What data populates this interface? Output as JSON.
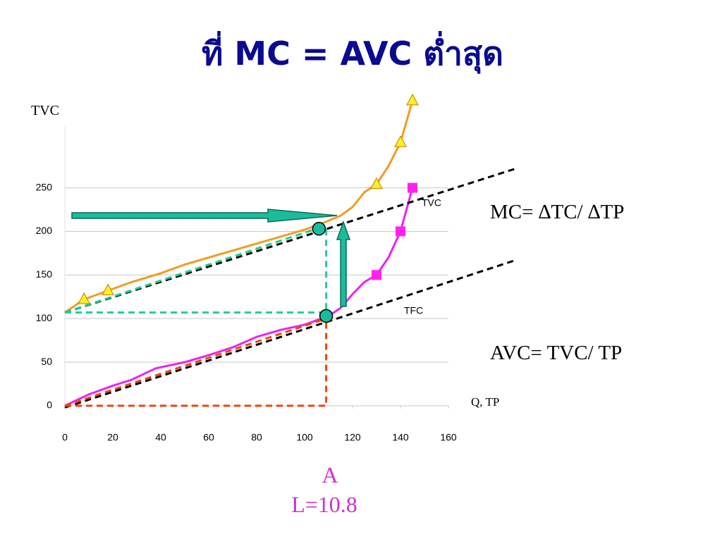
{
  "chart_data": {
    "type": "line",
    "title": "ที่ MC = AVC ต่ำสุด",
    "y_label": "TVC",
    "x_label": "Q, TP",
    "annotations": [
      "TVC",
      "TFC",
      "MC= ∆TC/ ∆TP",
      "AVC= TVC/ TP",
      "A",
      "L=10.8"
    ],
    "xlim": [
      0,
      160
    ],
    "xticks": [
      0,
      20,
      40,
      60,
      80,
      100,
      120,
      140,
      160
    ],
    "ylim": [
      0,
      320
    ],
    "yticks": [
      0,
      50,
      100,
      150,
      200,
      250
    ],
    "grid": true,
    "series": [
      {
        "color": "#f39c1f",
        "x": [
          0,
          8,
          18,
          28,
          40,
          50,
          60,
          70,
          80,
          90,
          100,
          108,
          115,
          120,
          125,
          130,
          135,
          140,
          145
        ],
        "values": [
          107,
          122,
          132,
          142,
          152,
          162,
          170,
          178,
          186,
          194,
          202,
          210,
          218,
          228,
          245,
          254,
          275,
          302,
          350
        ]
      },
      {
        "color": "#ee22ee",
        "x": [
          0,
          10,
          20,
          28,
          38,
          50,
          60,
          70,
          80,
          90,
          100,
          107,
          110,
          115,
          120,
          125,
          130,
          135,
          140,
          145
        ],
        "values": [
          0,
          13,
          23,
          30,
          43,
          50,
          58,
          67,
          79,
          87,
          93,
          100,
          103,
          112,
          128,
          142,
          150,
          170,
          200,
          250
        ]
      },
      {
        "color": "#000000",
        "dash": true,
        "x": [
          0,
          188
        ],
        "values": [
          107,
          272
        ]
      },
      {
        "color": "#000000",
        "dash": true,
        "x": [
          0,
          188
        ],
        "values": [
          -2,
          167
        ]
      },
      {
        "color": "#22cc99",
        "dash": true,
        "x": [
          0,
          106
        ],
        "values": [
          107,
          204
        ]
      },
      {
        "color": "#22cc99",
        "dash": true,
        "x": [
          0,
          109,
          109
        ],
        "values": [
          107,
          107,
          204
        ]
      },
      {
        "color": "#ee4411",
        "dash": true,
        "x": [
          0,
          109
        ],
        "values": [
          0,
          100
        ]
      },
      {
        "color": "#ee4411",
        "dash": true,
        "x": [
          0,
          109,
          109
        ],
        "values": [
          0,
          0,
          100
        ]
      },
      {
        "color": "#ffee22",
        "marker": "triangle",
        "x": [
          8,
          18,
          130,
          140,
          145
        ],
        "values": [
          122,
          132,
          254,
          302,
          350
        ]
      },
      {
        "color": "#ff22ee",
        "marker": "square",
        "x": [
          130,
          140,
          145
        ],
        "values": [
          150,
          200,
          250
        ]
      },
      {
        "color": "#1abc9c",
        "marker": "circle",
        "x": [
          106,
          109
        ],
        "values": [
          203,
          103
        ]
      }
    ]
  }
}
